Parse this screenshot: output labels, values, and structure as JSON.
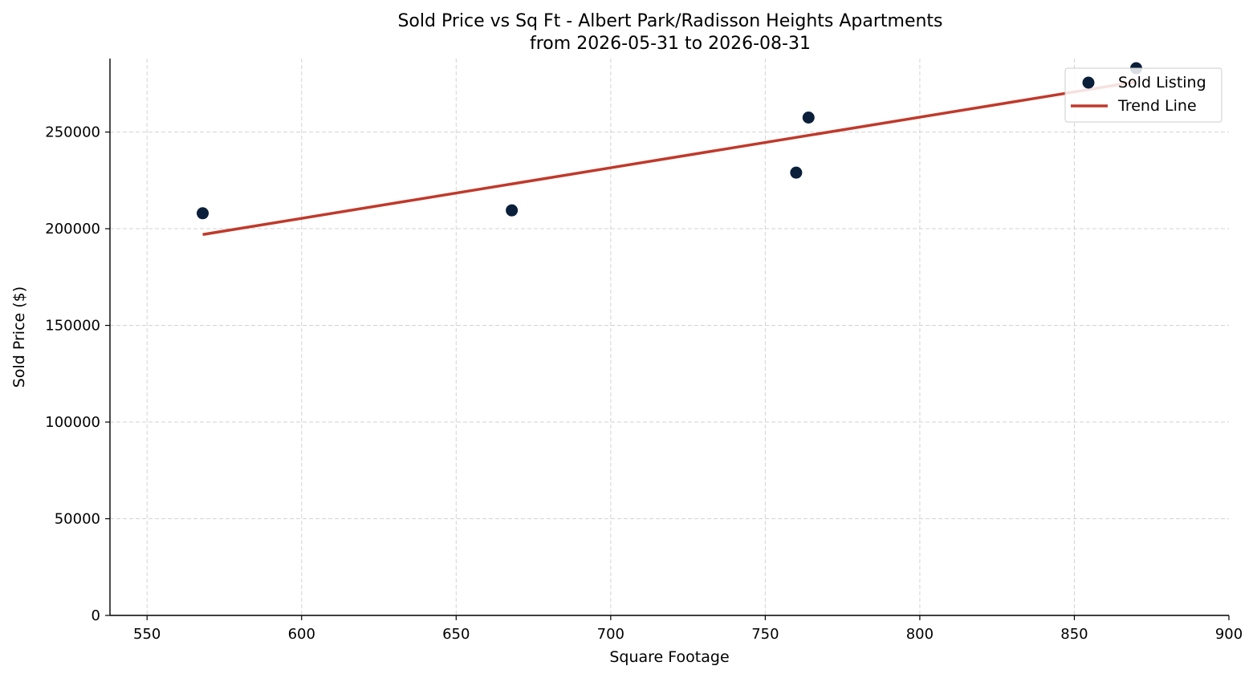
{
  "chart_data": {
    "type": "scatter",
    "title": "Sold Price vs Sq Ft - Albert Park/Radisson Heights Apartments",
    "subtitle": "from 2026-05-31 to 2026-08-31",
    "xlabel": "Square Footage",
    "ylabel": "Sold Price ($)",
    "xlim": [
      538,
      900
    ],
    "ylim": [
      0,
      288000
    ],
    "xticks": [
      550,
      600,
      650,
      700,
      750,
      800,
      850,
      900
    ],
    "yticks": [
      0,
      50000,
      100000,
      150000,
      200000,
      250000
    ],
    "grid": true,
    "legend_position": "top-right",
    "series": [
      {
        "name": "Sold Listing",
        "kind": "scatter",
        "color": "#0b1f3a",
        "points": [
          {
            "x": 568,
            "y": 208000
          },
          {
            "x": 668,
            "y": 209500
          },
          {
            "x": 760,
            "y": 229000
          },
          {
            "x": 764,
            "y": 257500
          },
          {
            "x": 870,
            "y": 283000
          }
        ]
      },
      {
        "name": "Trend Line",
        "kind": "line",
        "color": "#c0392b",
        "points": [
          {
            "x": 568,
            "y": 197000
          },
          {
            "x": 870,
            "y": 276000
          }
        ]
      }
    ]
  }
}
